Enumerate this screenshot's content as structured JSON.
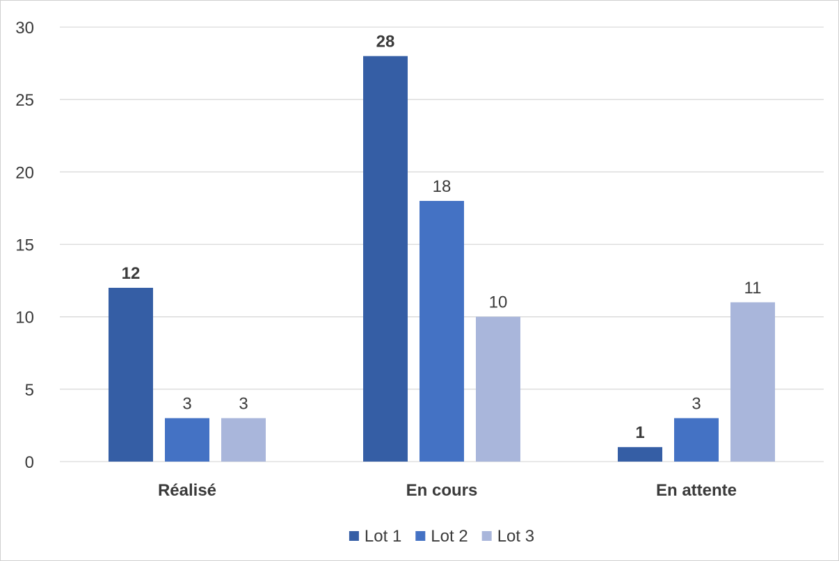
{
  "chart_data": {
    "type": "bar",
    "title": "",
    "xlabel": "",
    "ylabel": "",
    "categories": [
      "Réalisé",
      "En cours",
      "En attente"
    ],
    "series": [
      {
        "name": "Lot 1",
        "values": [
          12,
          28,
          1
        ],
        "color": "#355ea5",
        "labels_bold": true
      },
      {
        "name": "Lot 2",
        "values": [
          3,
          18,
          3
        ],
        "color": "#4472c4",
        "labels_bold": false
      },
      {
        "name": "Lot 3",
        "values": [
          3,
          10,
          11
        ],
        "color": "#a9b6db",
        "labels_bold": false
      }
    ],
    "ylim": [
      0,
      30
    ],
    "yticks": [
      0,
      5,
      10,
      15,
      20,
      25,
      30
    ],
    "grid": true,
    "legend_position": "bottom"
  },
  "colors": {
    "gridline": "#d9d9d9",
    "axis_line": "#d9d9d9",
    "text": "#3a3a3a"
  }
}
